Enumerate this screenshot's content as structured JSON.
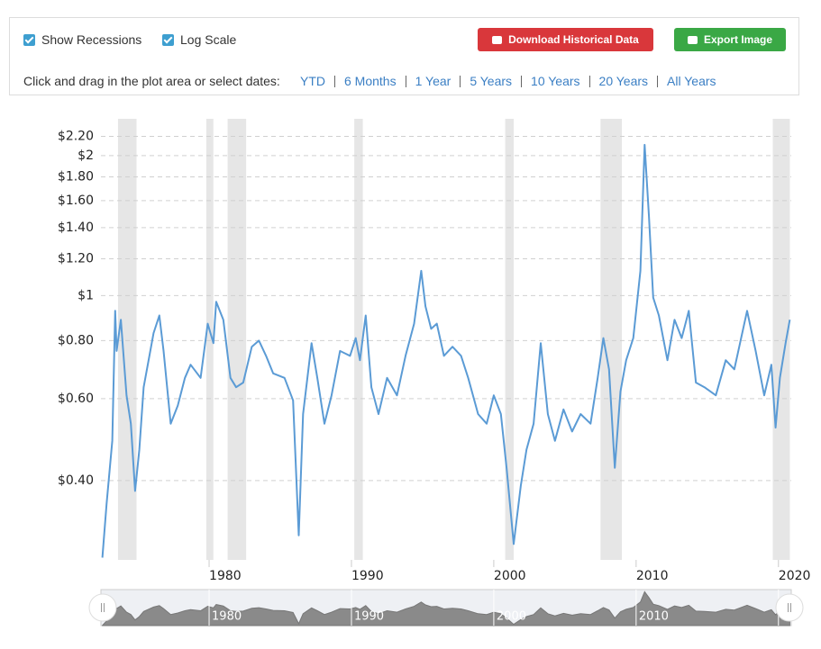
{
  "controls": {
    "show_recessions": {
      "label": "Show Recessions",
      "checked": true
    },
    "log_scale": {
      "label": "Log Scale",
      "checked": true
    },
    "download": "Download Historical Data",
    "export": "Export Image",
    "prompt": "Click and drag in the plot area or select dates:",
    "ranges": [
      "YTD",
      "6 Months",
      "1 Year",
      "5 Years",
      "10 Years",
      "20 Years",
      "All Years"
    ]
  },
  "chart_data": {
    "type": "line",
    "log_scale": true,
    "grid": true,
    "xlim": [
      1972.4,
      2020.9
    ],
    "xticks": [
      1980,
      1990,
      2000,
      2010,
      2020
    ],
    "ylim": [
      0.27,
      2.4
    ],
    "yticks": [
      {
        "value": 0.4,
        "label": "$0.40"
      },
      {
        "value": 0.6,
        "label": "$0.60"
      },
      {
        "value": 0.8,
        "label": "$0.80"
      },
      {
        "value": 1,
        "label": "$1"
      },
      {
        "value": 1.2,
        "label": "$1.20"
      },
      {
        "value": 1.4,
        "label": "$1.40"
      },
      {
        "value": 1.6,
        "label": "$1.60"
      },
      {
        "value": 1.8,
        "label": "$1.80"
      },
      {
        "value": 2,
        "label": "$2"
      },
      {
        "value": 2.2,
        "label": "$2.20"
      }
    ],
    "recession_color": "#e6e6e6",
    "recessions": [
      [
        1973.6,
        1974.9
      ],
      [
        1979.8,
        1980.3
      ],
      [
        1981.3,
        1982.6
      ],
      [
        1990.2,
        1990.8
      ],
      [
        2000.8,
        2001.4
      ],
      [
        2007.5,
        2009.0
      ],
      [
        2019.6,
        2020.8
      ]
    ],
    "series": [
      {
        "color": "#5b9bd5",
        "x": [
          1972.5,
          1972.8,
          1973.2,
          1973.4,
          1973.5,
          1973.8,
          1974.2,
          1974.5,
          1974.8,
          1975.1,
          1975.4,
          1976.1,
          1976.5,
          1976.8,
          1977.3,
          1977.8,
          1978.3,
          1978.7,
          1979.4,
          1979.9,
          1980.3,
          1980.5,
          1981.0,
          1981.5,
          1981.9,
          1982.4,
          1983.0,
          1983.5,
          1984.0,
          1984.5,
          1985.3,
          1985.9,
          1986.3,
          1986.6,
          1987.2,
          1987.6,
          1988.1,
          1988.6,
          1989.2,
          1989.9,
          1990.3,
          1990.6,
          1991.0,
          1991.4,
          1991.9,
          1992.5,
          1993.2,
          1993.8,
          1994.4,
          1994.9,
          1995.2,
          1995.6,
          1996.0,
          1996.5,
          1997.1,
          1997.7,
          1998.2,
          1998.9,
          1999.5,
          2000.0,
          2000.5,
          2000.9,
          2001.4,
          2001.9,
          2002.3,
          2002.8,
          2003.3,
          2003.8,
          2004.3,
          2004.9,
          2005.5,
          2006.1,
          2006.8,
          2007.3,
          2007.7,
          2008.1,
          2008.5,
          2008.9,
          2009.3,
          2009.8,
          2010.3,
          2010.6,
          2010.9,
          2011.2,
          2011.6,
          2012.2,
          2012.7,
          2013.2,
          2013.7,
          2014.2,
          2014.8,
          2015.6,
          2016.3,
          2016.9,
          2017.8,
          2018.4,
          2019.0,
          2019.5,
          2019.8,
          2020.1,
          2020.5,
          2020.8
        ],
        "values": [
          0.273,
          0.357,
          0.487,
          0.927,
          0.76,
          0.887,
          0.61,
          0.53,
          0.38,
          0.466,
          0.635,
          0.83,
          0.906,
          0.76,
          0.53,
          0.58,
          0.665,
          0.71,
          0.665,
          0.87,
          0.79,
          0.97,
          0.887,
          0.665,
          0.635,
          0.65,
          0.776,
          0.8,
          0.742,
          0.68,
          0.665,
          0.595,
          0.305,
          0.556,
          0.79,
          0.665,
          0.53,
          0.61,
          0.76,
          0.742,
          0.81,
          0.726,
          0.906,
          0.635,
          0.556,
          0.665,
          0.61,
          0.742,
          0.87,
          1.13,
          0.948,
          0.848,
          0.87,
          0.742,
          0.776,
          0.742,
          0.665,
          0.556,
          0.53,
          0.61,
          0.556,
          0.426,
          0.292,
          0.39,
          0.466,
          0.53,
          0.79,
          0.556,
          0.487,
          0.569,
          0.51,
          0.556,
          0.53,
          0.665,
          0.81,
          0.694,
          0.426,
          0.622,
          0.726,
          0.81,
          1.13,
          2.11,
          1.48,
          0.99,
          0.906,
          0.726,
          0.887,
          0.81,
          0.927,
          0.65,
          0.635,
          0.61,
          0.726,
          0.694,
          0.927,
          0.76,
          0.61,
          0.71,
          0.52,
          0.665,
          0.79,
          0.887
        ]
      }
    ]
  }
}
